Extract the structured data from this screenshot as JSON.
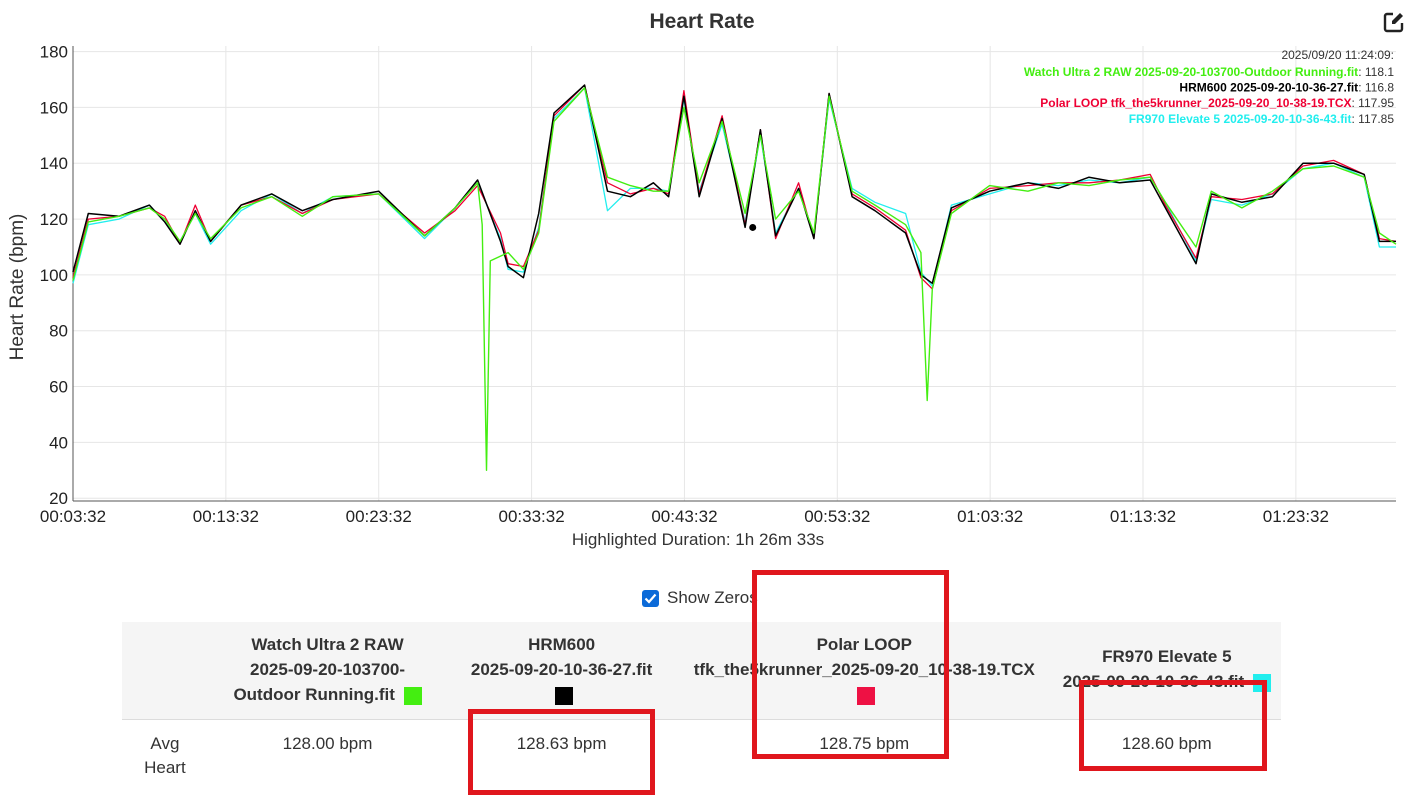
{
  "chart_data": {
    "type": "line",
    "title": "Heart Rate",
    "ylabel": "Heart Rate (bpm)",
    "xlabel": "Highlighted Duration: 1h 26m 33s",
    "ylim": [
      19,
      182
    ],
    "xlim": [
      "00:03:32",
      "01:30:05"
    ],
    "yticks": [
      20,
      40,
      60,
      80,
      100,
      120,
      140,
      160,
      180
    ],
    "xticks": [
      "00:03:32",
      "00:13:32",
      "00:23:32",
      "00:33:32",
      "00:43:32",
      "00:53:32",
      "01:03:32",
      "01:13:32",
      "01:23:32"
    ],
    "grid": true,
    "legend_placement": "top-right",
    "legend_time": "2025/09/20 11:24:09:",
    "series": [
      {
        "name": "Watch Ultra 2 RAW 2025-09-20-103700-Outdoor Running.fit",
        "color": "#44ee11",
        "hover_value": "118.1",
        "points": [
          [
            "00:03:32",
            98
          ],
          [
            "00:04:32",
            119
          ],
          [
            "00:06:32",
            121
          ],
          [
            "00:08:32",
            124
          ],
          [
            "00:09:32",
            120
          ],
          [
            "00:10:32",
            112
          ],
          [
            "00:11:32",
            122
          ],
          [
            "00:12:32",
            113
          ],
          [
            "00:14:32",
            124
          ],
          [
            "00:16:32",
            128
          ],
          [
            "00:18:32",
            121
          ],
          [
            "00:20:32",
            128
          ],
          [
            "00:23:32",
            129
          ],
          [
            "00:26:32",
            114
          ],
          [
            "00:28:32",
            124
          ],
          [
            "00:30:00",
            133
          ],
          [
            "00:30:18",
            118
          ],
          [
            "00:30:35",
            30
          ],
          [
            "00:30:50",
            105
          ],
          [
            "00:32:00",
            108
          ],
          [
            "00:33:00",
            102
          ],
          [
            "00:34:00",
            115
          ],
          [
            "00:35:00",
            155
          ],
          [
            "00:37:00",
            167
          ],
          [
            "00:38:30",
            135
          ],
          [
            "00:40:00",
            132
          ],
          [
            "00:41:30",
            130
          ],
          [
            "00:42:30",
            130
          ],
          [
            "00:43:30",
            160
          ],
          [
            "00:44:30",
            133
          ],
          [
            "00:46:00",
            155
          ],
          [
            "00:47:30",
            122
          ],
          [
            "00:48:30",
            150
          ],
          [
            "00:49:30",
            120
          ],
          [
            "00:51:00",
            130
          ],
          [
            "00:52:00",
            115
          ],
          [
            "00:53:00",
            164
          ],
          [
            "00:54:30",
            130
          ],
          [
            "00:56:00",
            125
          ],
          [
            "00:58:00",
            118
          ],
          [
            "00:59:00",
            108
          ],
          [
            "00:59:25",
            55
          ],
          [
            "00:59:45",
            95
          ],
          [
            "01:01:00",
            122
          ],
          [
            "01:03:30",
            132
          ],
          [
            "01:06:00",
            130
          ],
          [
            "01:08:00",
            133
          ],
          [
            "01:10:00",
            132
          ],
          [
            "01:12:00",
            134
          ],
          [
            "01:14:00",
            135
          ],
          [
            "01:15:00",
            126
          ],
          [
            "01:17:00",
            110
          ],
          [
            "01:18:00",
            130
          ],
          [
            "01:20:00",
            124
          ],
          [
            "01:22:00",
            130
          ],
          [
            "01:24:00",
            138
          ],
          [
            "01:26:00",
            139
          ],
          [
            "01:28:00",
            135
          ],
          [
            "01:29:00",
            115
          ],
          [
            "01:30:05",
            111
          ]
        ]
      },
      {
        "name": "HRM600 2025-09-20-10-36-27.fit",
        "color": "#000000",
        "hover_value": "116.8",
        "points": [
          [
            "00:03:32",
            101
          ],
          [
            "00:04:32",
            122
          ],
          [
            "00:06:32",
            121
          ],
          [
            "00:08:32",
            125
          ],
          [
            "00:09:32",
            119
          ],
          [
            "00:10:32",
            111
          ],
          [
            "00:11:32",
            123
          ],
          [
            "00:12:32",
            112
          ],
          [
            "00:14:32",
            125
          ],
          [
            "00:16:32",
            129
          ],
          [
            "00:18:32",
            123
          ],
          [
            "00:20:32",
            127
          ],
          [
            "00:23:32",
            130
          ],
          [
            "00:26:32",
            114
          ],
          [
            "00:28:32",
            124
          ],
          [
            "00:30:00",
            134
          ],
          [
            "00:31:30",
            112
          ],
          [
            "00:32:00",
            103
          ],
          [
            "00:33:00",
            99
          ],
          [
            "00:34:00",
            122
          ],
          [
            "00:35:00",
            158
          ],
          [
            "00:37:00",
            168
          ],
          [
            "00:38:30",
            130
          ],
          [
            "00:40:00",
            128
          ],
          [
            "00:41:30",
            133
          ],
          [
            "00:42:30",
            128
          ],
          [
            "00:43:30",
            164
          ],
          [
            "00:44:30",
            128
          ],
          [
            "00:46:00",
            156
          ],
          [
            "00:47:30",
            117
          ],
          [
            "00:48:30",
            152
          ],
          [
            "00:49:30",
            114
          ],
          [
            "00:51:00",
            131
          ],
          [
            "00:52:00",
            113
          ],
          [
            "00:53:00",
            165
          ],
          [
            "00:54:30",
            128
          ],
          [
            "00:56:00",
            123
          ],
          [
            "00:58:00",
            115
          ],
          [
            "00:59:00",
            100
          ],
          [
            "00:59:45",
            97
          ],
          [
            "01:01:00",
            124
          ],
          [
            "01:03:30",
            130
          ],
          [
            "01:06:00",
            133
          ],
          [
            "01:08:00",
            131
          ],
          [
            "01:10:00",
            135
          ],
          [
            "01:12:00",
            133
          ],
          [
            "01:14:00",
            134
          ],
          [
            "01:15:00",
            124
          ],
          [
            "01:17:00",
            104
          ],
          [
            "01:18:00",
            129
          ],
          [
            "01:20:00",
            126
          ],
          [
            "01:22:00",
            128
          ],
          [
            "01:24:00",
            140
          ],
          [
            "01:26:00",
            140
          ],
          [
            "01:28:00",
            136
          ],
          [
            "01:29:00",
            112
          ],
          [
            "01:30:05",
            112
          ]
        ]
      },
      {
        "name": "Polar LOOP tfk_the5krunner_2025-09-20_10-38-19.TCX",
        "color": "#ee0033",
        "hover_value": "117.95",
        "points": [
          [
            "00:03:32",
            99
          ],
          [
            "00:04:32",
            120
          ],
          [
            "00:06:32",
            121
          ],
          [
            "00:08:32",
            124
          ],
          [
            "00:09:32",
            121
          ],
          [
            "00:10:32",
            111
          ],
          [
            "00:11:32",
            125
          ],
          [
            "00:12:32",
            112
          ],
          [
            "00:14:32",
            125
          ],
          [
            "00:16:32",
            128
          ],
          [
            "00:18:32",
            122
          ],
          [
            "00:20:32",
            127
          ],
          [
            "00:23:32",
            129
          ],
          [
            "00:26:32",
            115
          ],
          [
            "00:28:32",
            123
          ],
          [
            "00:30:00",
            132
          ],
          [
            "00:31:30",
            115
          ],
          [
            "00:32:00",
            104
          ],
          [
            "00:33:00",
            103
          ],
          [
            "00:34:00",
            116
          ],
          [
            "00:35:00",
            157
          ],
          [
            "00:37:00",
            168
          ],
          [
            "00:38:30",
            133
          ],
          [
            "00:40:00",
            129
          ],
          [
            "00:41:30",
            131
          ],
          [
            "00:42:30",
            129
          ],
          [
            "00:43:30",
            166
          ],
          [
            "00:44:30",
            129
          ],
          [
            "00:46:00",
            157
          ],
          [
            "00:47:30",
            118
          ],
          [
            "00:48:30",
            152
          ],
          [
            "00:49:30",
            113
          ],
          [
            "00:51:00",
            133
          ],
          [
            "00:52:00",
            113
          ],
          [
            "00:53:00",
            165
          ],
          [
            "00:54:30",
            129
          ],
          [
            "00:56:00",
            124
          ],
          [
            "00:58:00",
            116
          ],
          [
            "00:59:00",
            99
          ],
          [
            "00:59:45",
            95
          ],
          [
            "01:01:00",
            123
          ],
          [
            "01:03:30",
            131
          ],
          [
            "01:06:00",
            132
          ],
          [
            "01:08:00",
            133
          ],
          [
            "01:10:00",
            133
          ],
          [
            "01:12:00",
            134
          ],
          [
            "01:14:00",
            136
          ],
          [
            "01:15:00",
            125
          ],
          [
            "01:17:00",
            106
          ],
          [
            "01:18:00",
            128
          ],
          [
            "01:20:00",
            127
          ],
          [
            "01:22:00",
            129
          ],
          [
            "01:24:00",
            139
          ],
          [
            "01:26:00",
            141
          ],
          [
            "01:28:00",
            136
          ],
          [
            "01:29:00",
            113
          ],
          [
            "01:30:05",
            112
          ]
        ]
      },
      {
        "name": "FR970 Elevate 5 2025-09-20-10-36-43.fit",
        "color": "#22eeee",
        "hover_value": "117.85",
        "points": [
          [
            "00:03:32",
            97
          ],
          [
            "00:04:32",
            118
          ],
          [
            "00:06:32",
            120
          ],
          [
            "00:08:32",
            125
          ],
          [
            "00:09:32",
            119
          ],
          [
            "00:10:32",
            112
          ],
          [
            "00:11:32",
            122
          ],
          [
            "00:12:32",
            111
          ],
          [
            "00:14:32",
            123
          ],
          [
            "00:16:32",
            129
          ],
          [
            "00:18:32",
            122
          ],
          [
            "00:20:32",
            128
          ],
          [
            "00:23:32",
            129
          ],
          [
            "00:26:32",
            113
          ],
          [
            "00:28:32",
            124
          ],
          [
            "00:30:00",
            133
          ],
          [
            "00:31:30",
            113
          ],
          [
            "00:32:00",
            102
          ],
          [
            "00:33:00",
            101
          ],
          [
            "00:34:00",
            117
          ],
          [
            "00:35:00",
            156
          ],
          [
            "00:37:00",
            167
          ],
          [
            "00:38:30",
            123
          ],
          [
            "00:40:00",
            131
          ],
          [
            "00:41:30",
            131
          ],
          [
            "00:42:30",
            130
          ],
          [
            "00:43:30",
            163
          ],
          [
            "00:44:30",
            130
          ],
          [
            "00:46:00",
            154
          ],
          [
            "00:47:30",
            119
          ],
          [
            "00:48:30",
            150
          ],
          [
            "00:49:30",
            115
          ],
          [
            "00:51:00",
            131
          ],
          [
            "00:52:00",
            114
          ],
          [
            "00:53:00",
            163
          ],
          [
            "00:54:30",
            131
          ],
          [
            "00:56:00",
            126
          ],
          [
            "00:58:00",
            122
          ],
          [
            "00:59:00",
            101
          ],
          [
            "00:59:45",
            96
          ],
          [
            "01:01:00",
            125
          ],
          [
            "01:03:30",
            129
          ],
          [
            "01:06:00",
            133
          ],
          [
            "01:08:00",
            132
          ],
          [
            "01:10:00",
            134
          ],
          [
            "01:12:00",
            133
          ],
          [
            "01:14:00",
            135
          ],
          [
            "01:15:00",
            126
          ],
          [
            "01:17:00",
            105
          ],
          [
            "01:18:00",
            127
          ],
          [
            "01:20:00",
            125
          ],
          [
            "01:22:00",
            129
          ],
          [
            "01:24:00",
            138
          ],
          [
            "01:26:00",
            140
          ],
          [
            "01:28:00",
            135
          ],
          [
            "01:29:00",
            110
          ],
          [
            "01:30:05",
            110
          ]
        ]
      }
    ],
    "marker": {
      "time": "00:48:00",
      "value": 117
    }
  },
  "controls": {
    "show_zeros_label": "Show Zeros",
    "show_zeros_checked": true,
    "export_icon": "edit-export-icon"
  },
  "stats_table": {
    "columns": [
      {
        "lines": [
          "Watch Ultra 2 RAW",
          "2025-09-20-103700-",
          "Outdoor Running.fit"
        ],
        "color": "#44ee11"
      },
      {
        "lines": [
          "HRM600",
          "2025-09-20-10-36-27.fit",
          ""
        ],
        "color": "#000000"
      },
      {
        "lines": [
          "Polar LOOP",
          "tfk_the5krunner_2025-09-20_10-38-19.TCX",
          ""
        ],
        "color": "#ee1144"
      },
      {
        "lines": [
          "FR970 Elevate 5",
          "2025-09-20-10-36-43.fit",
          ""
        ],
        "color": "#22eeee"
      }
    ],
    "rows": [
      {
        "label_lines": [
          "Avg",
          "Heart"
        ],
        "values": [
          "128.00 bpm",
          "128.63 bpm",
          "128.75 bpm",
          "128.60 bpm"
        ]
      }
    ]
  },
  "highlight_color": "#e0161d"
}
